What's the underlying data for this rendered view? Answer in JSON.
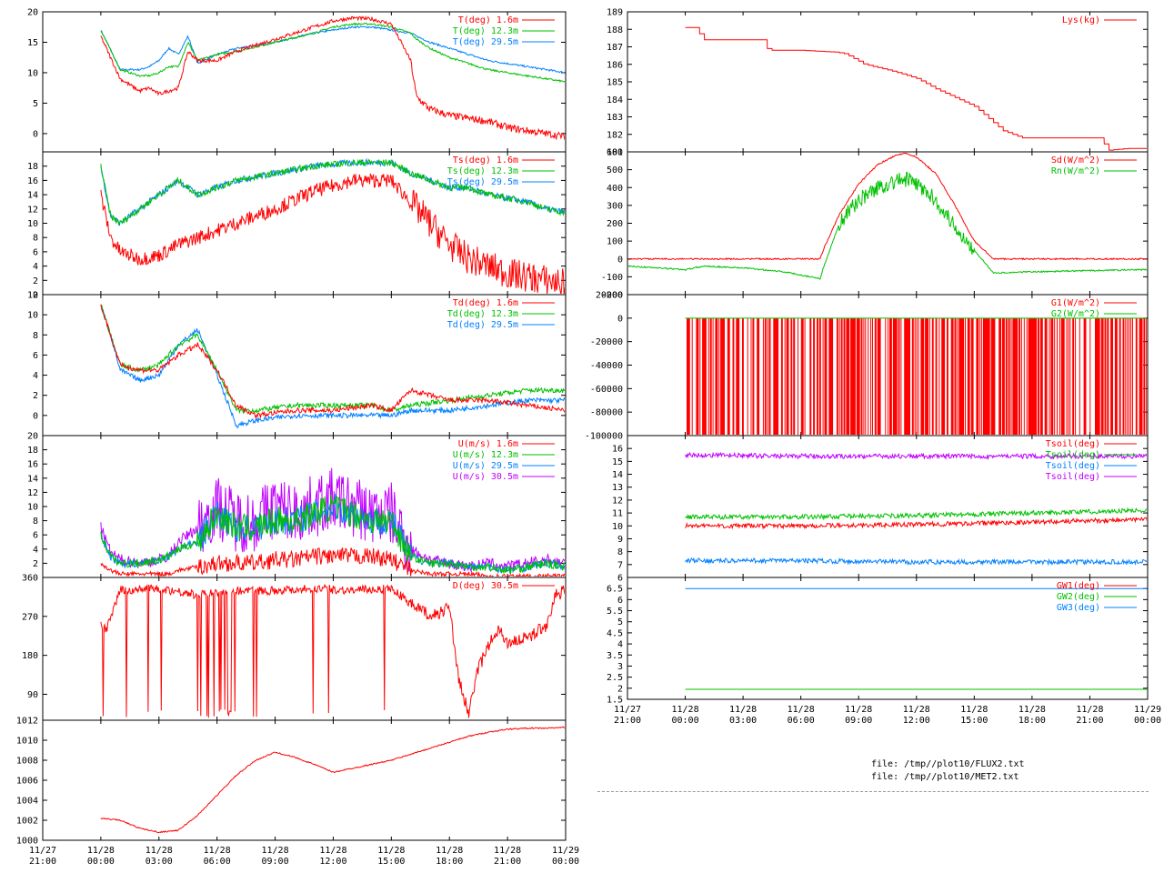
{
  "colors": {
    "red": "#ff0000",
    "green": "#00c000",
    "blue": "#0080ff",
    "purple": "#c000ff",
    "axis": "#000000",
    "grid": "#000000"
  },
  "footer": {
    "files": [
      "file: /tmp//plot10/FLUX2.txt",
      "file: /tmp//plot10/MET2.txt"
    ]
  },
  "chart_data": [
    {
      "id": "temp",
      "type": "line",
      "column": "left",
      "ylim": [
        -3,
        20
      ],
      "yticks": [
        0,
        5,
        10,
        15,
        20
      ],
      "ytick_labels": [
        "0",
        "5",
        "10",
        "15",
        "20"
      ],
      "x_hours": [
        0,
        1,
        2,
        2.5,
        3,
        3.5,
        4,
        4.5,
        5,
        6,
        7,
        9,
        11,
        12,
        13,
        14,
        15,
        16,
        16.3,
        17,
        18,
        19,
        20,
        21,
        22,
        23,
        24
      ],
      "series": [
        {
          "name": "T(deg)  1.6m",
          "color": "red",
          "values": [
            16,
            9,
            7,
            7.5,
            6.5,
            7,
            7.5,
            13.5,
            12,
            12,
            13.5,
            15.5,
            17.5,
            18.5,
            19,
            18.8,
            18,
            12,
            6,
            4,
            3,
            2.5,
            2,
            1,
            0.5,
            0,
            -0.5
          ]
        },
        {
          "name": "T(deg) 12.3m",
          "color": "green",
          "values": [
            17,
            10.5,
            9.5,
            9.5,
            10,
            11,
            11,
            15,
            12,
            13,
            13.5,
            15,
            16.5,
            17.5,
            18,
            18,
            17.5,
            16.5,
            15.5,
            14,
            12.5,
            11.5,
            10.5,
            10,
            9.5,
            9,
            8.5
          ]
        },
        {
          "name": "T(deg) 29.5m",
          "color": "blue",
          "values": [
            17,
            10.5,
            10.5,
            11,
            12,
            14,
            13,
            16,
            11.5,
            13,
            14,
            15,
            16.5,
            17,
            17.5,
            17.5,
            17,
            16.5,
            16,
            15,
            14,
            13,
            12,
            11.5,
            11,
            10.5,
            10
          ]
        }
      ]
    },
    {
      "id": "surface",
      "type": "line",
      "column": "left",
      "ylim": [
        0,
        20
      ],
      "yticks": [
        0,
        2,
        4,
        6,
        8,
        10,
        12,
        14,
        16,
        18
      ],
      "ytick_labels": [
        "0",
        "2",
        "4",
        "6",
        "8",
        "10",
        "12",
        "14",
        "16",
        "18"
      ],
      "x_hours": [
        0,
        0.5,
        1,
        2,
        3,
        4,
        5,
        6,
        7,
        9,
        11,
        13,
        15,
        16,
        17,
        18,
        19,
        20,
        21,
        22,
        23,
        24
      ],
      "series": [
        {
          "name": "Ts(deg)  1.6m",
          "color": "red",
          "values": [
            14,
            8,
            6,
            5,
            5.5,
            7,
            8,
            9,
            10,
            12,
            14.5,
            16,
            16,
            13,
            10,
            7,
            5,
            4,
            3,
            2.5,
            2,
            1.5
          ]
        },
        {
          "name": "Ts(deg) 12.3m",
          "color": "green",
          "values": [
            18,
            11,
            10,
            12,
            14,
            16,
            14,
            15,
            16,
            17,
            18,
            18.5,
            18.5,
            17,
            16,
            15,
            15,
            14,
            13.5,
            13,
            12,
            11.5
          ]
        },
        {
          "name": "Ts(deg) 29.5m",
          "color": "blue",
          "values": [
            18,
            11,
            10,
            12,
            14,
            16,
            14,
            15,
            16,
            17,
            18,
            18.5,
            18.5,
            17,
            16,
            15,
            15,
            14,
            13.5,
            13,
            12,
            11.5
          ]
        }
      ]
    },
    {
      "id": "dewpoint",
      "type": "line",
      "column": "left",
      "ylim": [
        -2,
        12
      ],
      "yticks": [
        0,
        2,
        4,
        6,
        8,
        10,
        12
      ],
      "ytick_labels": [
        "0",
        "2",
        "4",
        "6",
        "8",
        "10",
        "12"
      ],
      "x_hours": [
        0,
        0.5,
        1,
        2,
        3,
        4,
        5,
        6,
        7,
        8,
        10,
        12,
        14,
        15,
        16,
        18,
        20,
        22,
        24
      ],
      "series": [
        {
          "name": "Td(deg)  1.6m",
          "color": "red",
          "values": [
            11,
            8,
            5,
            4.5,
            4.5,
            6,
            7,
            4.5,
            1,
            0,
            0.5,
            0.5,
            1,
            0.5,
            2.5,
            1.5,
            1.5,
            1,
            0.5
          ]
        },
        {
          "name": "Td(deg) 12.3m",
          "color": "green",
          "values": [
            11,
            8,
            5,
            4.5,
            5,
            7,
            8,
            4.5,
            0.5,
            0.5,
            1,
            1,
            1,
            0.5,
            1,
            1.5,
            2,
            2.5,
            2.5
          ]
        },
        {
          "name": "Td(deg) 29.5m",
          "color": "blue",
          "values": [
            11,
            8,
            4.5,
            3.5,
            4,
            7,
            8.5,
            4,
            -1,
            -0.5,
            0,
            0,
            0,
            0,
            0.5,
            0.5,
            1,
            1.5,
            1.5
          ]
        }
      ]
    },
    {
      "id": "wind",
      "type": "line",
      "column": "left",
      "ylim": [
        0,
        20
      ],
      "yticks": [
        0,
        2,
        4,
        6,
        8,
        10,
        12,
        14,
        16,
        18,
        20
      ],
      "ytick_labels": [
        "",
        "2",
        "4",
        "6",
        "8",
        "10",
        "12",
        "14",
        "16",
        "18",
        "20"
      ],
      "x_hours": [
        0,
        0.5,
        1,
        2,
        3,
        3.5,
        4,
        5,
        6,
        7,
        8,
        9,
        10,
        11,
        12,
        13,
        14,
        15,
        16,
        17,
        18,
        19,
        20,
        21,
        22,
        23,
        24
      ],
      "series": [
        {
          "name": "U(m/s)  1.6m",
          "color": "red",
          "values": [
            2,
            1,
            0.5,
            0.5,
            0.5,
            0.5,
            1,
            1.5,
            2,
            2,
            2,
            2.5,
            2.5,
            3,
            3,
            3,
            3,
            2.5,
            1,
            0.5,
            0.5,
            0.5,
            0.2,
            0.2,
            0.2,
            0.2,
            0.2
          ]
        },
        {
          "name": "U(m/s) 12.3m",
          "color": "green",
          "values": [
            6,
            3,
            2,
            2,
            2.5,
            3,
            4,
            5,
            9,
            7,
            7,
            8,
            8,
            9,
            10,
            9,
            8,
            8,
            3,
            2,
            2,
            1.5,
            1.5,
            1,
            1.5,
            2,
            1.5
          ]
        },
        {
          "name": "U(m/s) 29.5m",
          "color": "blue",
          "values": [
            6,
            3,
            2,
            2,
            2.5,
            3,
            4,
            5,
            9,
            7,
            7,
            8,
            8,
            9,
            10,
            9,
            8,
            8,
            3,
            2,
            2,
            1.5,
            1.5,
            1,
            1.5,
            2,
            1.5
          ]
        },
        {
          "name": "U(m/s) 30.5m",
          "color": "purple",
          "values": [
            7,
            3.5,
            2.5,
            2,
            2.5,
            3,
            5,
            7,
            10,
            8,
            8,
            10,
            9,
            10,
            11,
            10,
            9,
            9,
            4,
            2.5,
            2,
            1.5,
            2,
            1.5,
            2,
            2.5,
            2
          ]
        }
      ]
    },
    {
      "id": "direction",
      "type": "line",
      "column": "left",
      "ylim": [
        30,
        360
      ],
      "yticks": [
        90,
        180,
        270,
        360
      ],
      "ytick_labels": [
        "90",
        "180",
        "270",
        "360"
      ],
      "x_hours": [
        0,
        0.3,
        1,
        3,
        5,
        7,
        9,
        11,
        13,
        15,
        16,
        17,
        18,
        18.5,
        19,
        19.5,
        20,
        20.5,
        21,
        22,
        23,
        23.5,
        24
      ],
      "series": [
        {
          "name": "D(deg)  30.5m",
          "color": "red",
          "values": [
            250,
            240,
            330,
            335,
            320,
            330,
            330,
            335,
            330,
            335,
            300,
            270,
            290,
            120,
            45,
            150,
            200,
            240,
            210,
            220,
            250,
            320,
            330
          ]
        }
      ]
    },
    {
      "id": "pressure",
      "type": "line",
      "column": "left",
      "ylim": [
        1000,
        1012
      ],
      "yticks": [
        1000,
        1002,
        1004,
        1006,
        1008,
        1010,
        1012
      ],
      "ytick_labels": [
        "1000",
        "1002",
        "1004",
        "1006",
        "1008",
        "1010",
        "1012"
      ],
      "x_hours": [
        0,
        1,
        2,
        3,
        4,
        5,
        6,
        7,
        8,
        9,
        10,
        11,
        12,
        13,
        14,
        15,
        16,
        17,
        18,
        19,
        20,
        21,
        22,
        23,
        24
      ],
      "series": [
        {
          "name": "P(hPa)",
          "color": "red",
          "values": [
            1002.2,
            1002.0,
            1001.2,
            1000.8,
            1001.0,
            1002.5,
            1004.5,
            1006.5,
            1008.0,
            1008.8,
            1008.3,
            1007.6,
            1006.8,
            1007.2,
            1007.6,
            1008.0,
            1008.6,
            1009.2,
            1009.8,
            1010.4,
            1010.8,
            1011.1,
            1011.2,
            1011.2,
            1011.3
          ]
        }
      ]
    },
    {
      "id": "lys",
      "type": "line",
      "column": "right",
      "ylim": [
        181,
        189
      ],
      "yticks": [
        181,
        182,
        183,
        184,
        185,
        186,
        187,
        188,
        189
      ],
      "ytick_labels": [
        "181",
        "182",
        "183",
        "184",
        "185",
        "186",
        "187",
        "188",
        "189"
      ],
      "x_hours": [
        0,
        0.5,
        1,
        1.5,
        4,
        4.3,
        6,
        7.8,
        8.3,
        9.3,
        10.8,
        12,
        13,
        15,
        16.5,
        17.5,
        19,
        20.5,
        21.5,
        22,
        23,
        24
      ],
      "series": [
        {
          "name": "Lys(kg)",
          "color": "red",
          "values": [
            188.1,
            188.1,
            187.4,
            187.4,
            187.4,
            186.8,
            186.8,
            186.7,
            186.6,
            186.0,
            185.6,
            185.2,
            184.6,
            183.6,
            182.2,
            181.8,
            181.8,
            181.8,
            181.8,
            181.1,
            181.2,
            181.2
          ]
        }
      ]
    },
    {
      "id": "radiation",
      "type": "line",
      "column": "right",
      "ylim": [
        -200,
        600
      ],
      "yticks": [
        -200,
        -100,
        0,
        100,
        200,
        300,
        400,
        500,
        600
      ],
      "ytick_labels": [
        "-200",
        "-100",
        "0",
        "100",
        "200",
        "300",
        "400",
        "500",
        "600"
      ],
      "x_hours": [
        -3,
        0,
        1,
        3,
        5,
        7,
        7.2,
        8,
        9,
        10,
        11,
        11.5,
        12,
        13,
        14,
        15,
        16,
        17,
        19,
        21,
        24
      ],
      "series": [
        {
          "name": "Sd(W/m^2)",
          "color": "red",
          "values": [
            0,
            0,
            0,
            0,
            0,
            0,
            60,
            250,
            420,
            530,
            585,
            590,
            570,
            480,
            300,
            100,
            0,
            0,
            0,
            0,
            0
          ]
        },
        {
          "name": "Rn(W/m^2)",
          "color": "green",
          "values": [
            -40,
            -60,
            -40,
            -50,
            -70,
            -110,
            -40,
            200,
            330,
            400,
            440,
            445,
            420,
            330,
            180,
            50,
            -80,
            -75,
            -70,
            -65,
            -60
          ]
        }
      ]
    },
    {
      "id": "ground_flux",
      "type": "line",
      "column": "right",
      "ylim": [
        -100000,
        20000
      ],
      "yticks": [
        -100000,
        -80000,
        -60000,
        -40000,
        -20000,
        0,
        20000
      ],
      "ytick_labels": [
        "-100000",
        "-80000",
        "-60000",
        "-40000",
        "-20000",
        "0",
        "20000"
      ],
      "x_hours": [
        0,
        24
      ],
      "series": [
        {
          "name": "G1(W/m^2)",
          "color": "red",
          "values": [
            0,
            0
          ]
        },
        {
          "name": "G2(W/m^2)",
          "color": "green",
          "values": [
            0,
            0
          ]
        }
      ]
    },
    {
      "id": "soil_temp",
      "type": "line",
      "column": "right",
      "ylim": [
        6,
        17
      ],
      "yticks": [
        6,
        7,
        8,
        9,
        10,
        11,
        12,
        13,
        14,
        15,
        16
      ],
      "ytick_labels": [
        "6",
        "7",
        "8",
        "9",
        "10",
        "11",
        "12",
        "13",
        "14",
        "15",
        "16"
      ],
      "x_hours": [
        0,
        6,
        12,
        18,
        24
      ],
      "series": [
        {
          "name": "Tsoil(deg)",
          "color": "red",
          "values": [
            10.0,
            10.0,
            10.1,
            10.3,
            10.5
          ]
        },
        {
          "name": "Tsoil(deg)",
          "color": "green",
          "values": [
            10.7,
            10.7,
            10.8,
            11.0,
            11.2
          ]
        },
        {
          "name": "Tsoil(deg)",
          "color": "blue",
          "values": [
            7.3,
            7.3,
            7.2,
            7.2,
            7.2
          ]
        },
        {
          "name": "Tsoil(deg)",
          "color": "purple",
          "values": [
            15.5,
            15.4,
            15.4,
            15.4,
            15.4
          ]
        }
      ]
    },
    {
      "id": "groundwater",
      "type": "line",
      "column": "right",
      "ylim": [
        1.5,
        7
      ],
      "yticks": [
        1.5,
        2,
        2.5,
        3,
        3.5,
        4,
        4.5,
        5,
        5.5,
        6,
        6.5
      ],
      "ytick_labels": [
        "1.5",
        "2",
        "2.5",
        "3",
        "3.5",
        "4",
        "4.5",
        "5",
        "5.5",
        "6",
        "6.5"
      ],
      "x_hours": [
        0,
        24
      ],
      "series": [
        {
          "name": "GW1(deg)",
          "color": "red",
          "values": [
            1.5,
            1.5
          ]
        },
        {
          "name": "GW2(deg)",
          "color": "green",
          "values": [
            1.95,
            1.95
          ]
        },
        {
          "name": "GW3(deg)",
          "color": "blue",
          "values": [
            6.5,
            6.5
          ]
        }
      ]
    }
  ],
  "x_axis": {
    "range_hours": [
      -3,
      24
    ],
    "tick_hours": [
      -3,
      0,
      3,
      6,
      9,
      12,
      15,
      18,
      21,
      24
    ],
    "tick_labels": [
      [
        "11/27",
        "21:00"
      ],
      [
        "11/28",
        "00:00"
      ],
      [
        "11/28",
        "03:00"
      ],
      [
        "11/28",
        "06:00"
      ],
      [
        "11/28",
        "09:00"
      ],
      [
        "11/28",
        "12:00"
      ],
      [
        "11/28",
        "15:00"
      ],
      [
        "11/28",
        "18:00"
      ],
      [
        "11/28",
        "21:00"
      ],
      [
        "11/29",
        "00:00"
      ]
    ]
  }
}
